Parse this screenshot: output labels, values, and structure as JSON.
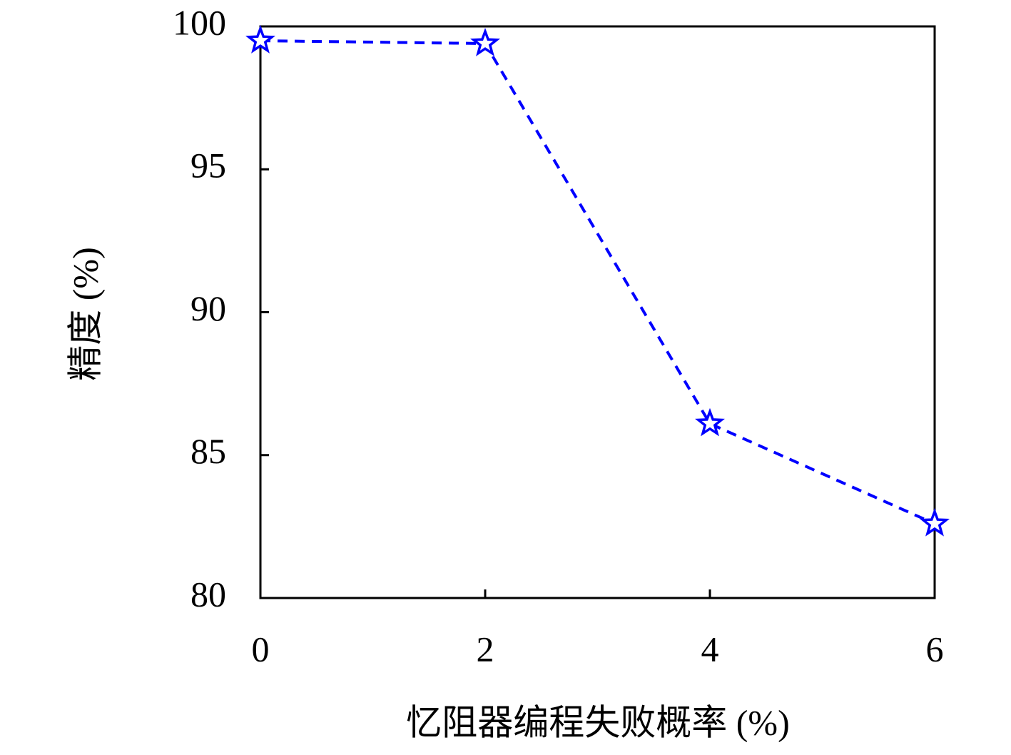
{
  "chart_data": {
    "type": "line",
    "xlabel": "忆阻器编程失败概率 (%)",
    "ylabel": "精度 (%)",
    "x": [
      0,
      2,
      4,
      6
    ],
    "series": [
      {
        "color": "#0000ff",
        "values": [
          99.5,
          99.4,
          86.1,
          82.6
        ]
      }
    ],
    "xlim": [
      0,
      6
    ],
    "xticks": [
      0,
      2,
      4,
      6
    ],
    "ylim": [
      80,
      100
    ],
    "yticks": [
      80,
      85,
      90,
      95,
      100
    ],
    "marker": "star",
    "line_style": "dashed",
    "grid": false
  }
}
